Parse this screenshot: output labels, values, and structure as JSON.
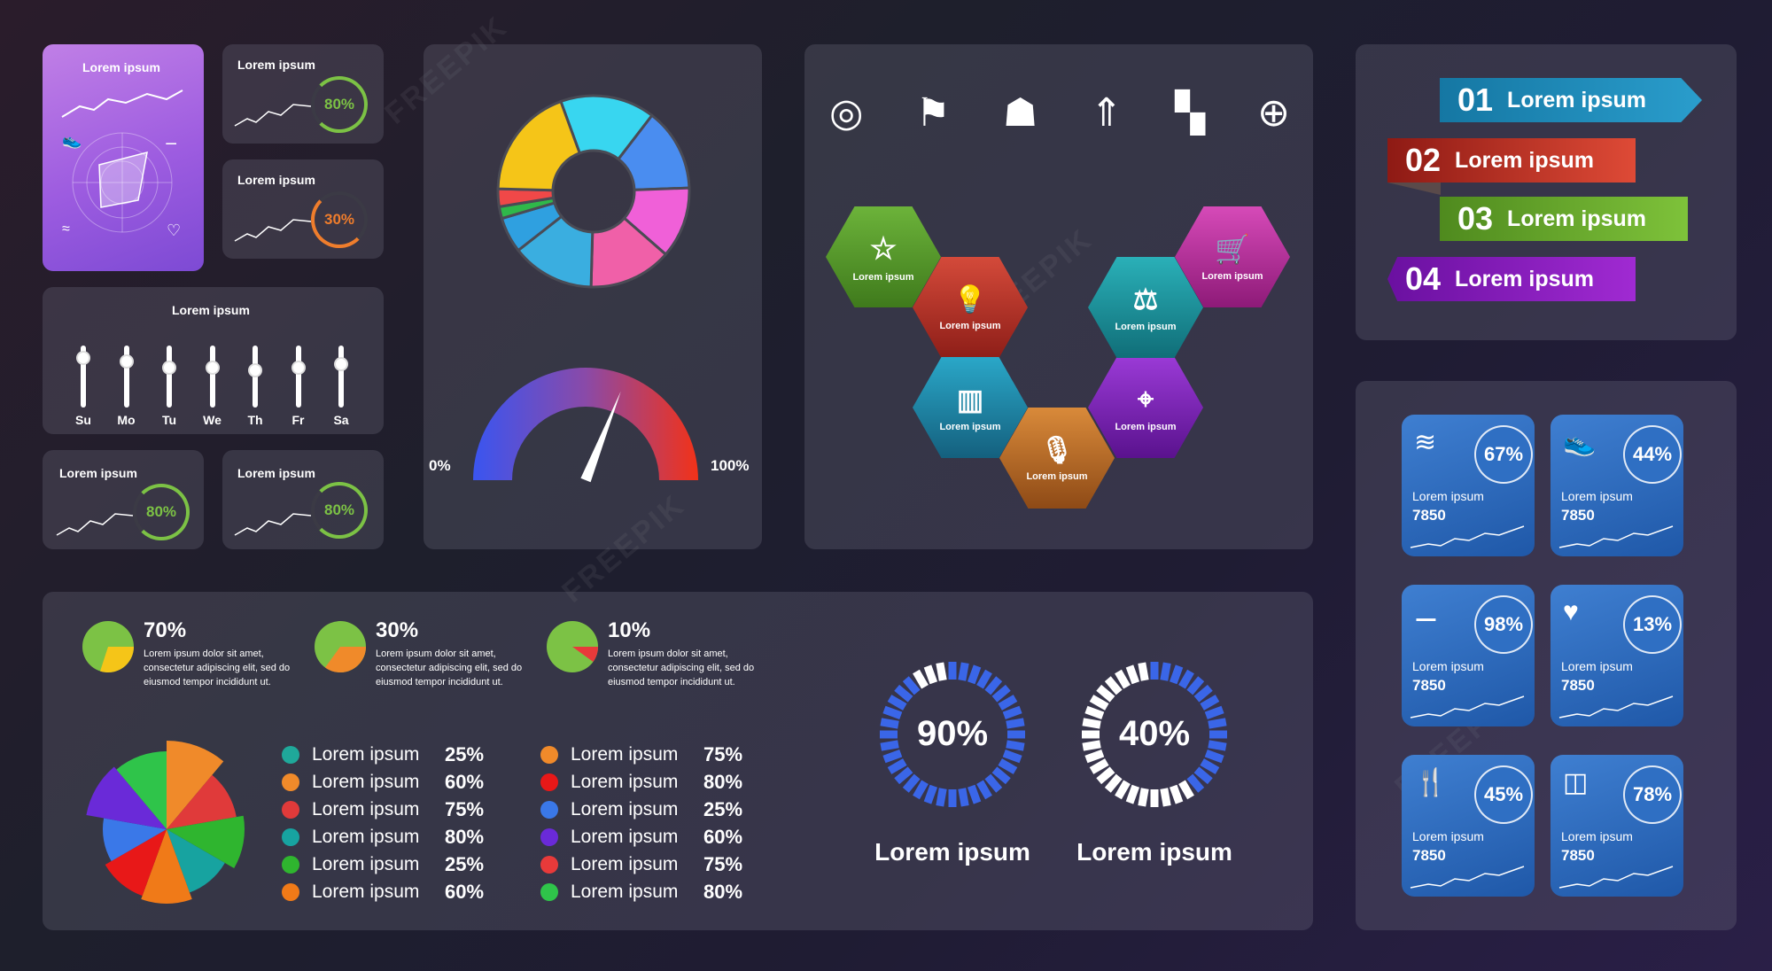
{
  "colors": {
    "green_ring": "#7cc245",
    "orange_ring": "#ef7d2c",
    "blue_card": "#2f6fc3"
  },
  "fitness_card": {
    "title": "Lorem ipsum"
  },
  "mini_cards": [
    {
      "title": "Lorem ipsum",
      "value": "80%"
    },
    {
      "title": "Lorem ipsum",
      "value": "30%"
    },
    {
      "title": "Lorem ipsum",
      "value": "80%"
    },
    {
      "title": "Lorem ipsum",
      "value": "80%"
    }
  ],
  "sliders": {
    "title": "Lorem ipsum",
    "days": [
      "Su",
      "Mo",
      "Tu",
      "We",
      "Th",
      "Fr",
      "Sa"
    ]
  },
  "gauge": {
    "min_label": "0%",
    "max_label": "100%",
    "value": 0.62
  },
  "top_icons": [
    "target-icon",
    "stairs-flag-icon",
    "waiter-icon",
    "rocket-icon",
    "binoculars-icon",
    "globe-icon"
  ],
  "hexagons": [
    {
      "label": "Lorem ipsum",
      "icon": "star-icon",
      "color": "#5a9a2e"
    },
    {
      "label": "Lorem ipsum",
      "icon": "lightbulb-icon",
      "color": "#c4352a"
    },
    {
      "label": "Lorem ipsum",
      "icon": "bar-chart-icon",
      "color": "#1f8fb0"
    },
    {
      "label": "Lorem ipsum",
      "icon": "microphone-icon",
      "color": "#c77428"
    },
    {
      "label": "Lorem ipsum",
      "icon": "location-pin-icon",
      "color": "#7b22b8"
    },
    {
      "label": "Lorem ipsum",
      "icon": "balance-scale-icon",
      "color": "#1f9ea8"
    },
    {
      "label": "Lorem ipsum",
      "icon": "shopping-cart-icon",
      "color": "#c53aa8"
    }
  ],
  "ribbons": [
    {
      "num": "01",
      "text": "Lorem ipsum",
      "color": "#1b86b3"
    },
    {
      "num": "02",
      "text": "Lorem ipsum",
      "color": "#c8392c"
    },
    {
      "num": "03",
      "text": "Lorem ipsum",
      "color": "#6eaa2a"
    },
    {
      "num": "04",
      "text": "Lorem ipsum",
      "color": "#8b1fae"
    }
  ],
  "fitness_cards": [
    {
      "icon": "swimmer-icon",
      "pct": "67%",
      "label": "Lorem ipsum",
      "value": "7850"
    },
    {
      "icon": "sneaker-icon",
      "pct": "44%",
      "label": "Lorem ipsum",
      "value": "7850"
    },
    {
      "icon": "dumbbell-icon",
      "pct": "98%",
      "label": "Lorem ipsum",
      "value": "7850"
    },
    {
      "icon": "heart-icon",
      "pct": "13%",
      "label": "Lorem ipsum",
      "value": "7850"
    },
    {
      "icon": "fork-knife-icon",
      "pct": "45%",
      "label": "Lorem ipsum",
      "value": "7850"
    },
    {
      "icon": "glass-icon",
      "pct": "78%",
      "label": "Lorem ipsum",
      "value": "7850"
    }
  ],
  "pie_stats": [
    {
      "value": "70%",
      "text": "Lorem ipsum dolor sit amet, consectetur adipiscing elit, sed do eiusmod tempor incididunt ut."
    },
    {
      "value": "30%",
      "text": "Lorem ipsum dolor sit amet, consectetur adipiscing elit, sed do eiusmod tempor incididunt ut."
    },
    {
      "value": "10%",
      "text": "Lorem ipsum dolor sit amet, consectetur adipiscing elit, sed do eiusmod tempor incididunt ut."
    }
  ],
  "legend_left": [
    {
      "label": "Lorem ipsum",
      "value": "25%",
      "color": "#1fa89a"
    },
    {
      "label": "Lorem ipsum",
      "value": "60%",
      "color": "#f08a2a"
    },
    {
      "label": "Lorem ipsum",
      "value": "75%",
      "color": "#e03a3a"
    },
    {
      "label": "Lorem ipsum",
      "value": "80%",
      "color": "#17a3a0"
    },
    {
      "label": "Lorem ipsum",
      "value": "25%",
      "color": "#2fb52f"
    },
    {
      "label": "Lorem ipsum",
      "value": "60%",
      "color": "#f07a18"
    }
  ],
  "legend_right": [
    {
      "label": "Lorem ipsum",
      "value": "75%",
      "color": "#f08a2a"
    },
    {
      "label": "Lorem ipsum",
      "value": "80%",
      "color": "#e81818"
    },
    {
      "label": "Lorem ipsum",
      "value": "25%",
      "color": "#3a78e8"
    },
    {
      "label": "Lorem ipsum",
      "value": "60%",
      "color": "#6a2ad8"
    },
    {
      "label": "Lorem ipsum",
      "value": "75%",
      "color": "#e83a3a"
    },
    {
      "label": "Lorem ipsum",
      "value": "80%",
      "color": "#2fc44a"
    }
  ],
  "progress_rings": [
    {
      "value": "90%",
      "label": "Lorem ipsum",
      "fraction": 0.9
    },
    {
      "value": "40%",
      "label": "Lorem ipsum",
      "fraction": 0.4
    }
  ],
  "chart_data": [
    {
      "type": "pie",
      "title": "",
      "values": [
        16,
        14,
        12,
        14,
        14,
        6,
        2,
        3,
        19
      ],
      "colors": [
        "#38d6f0",
        "#4a8df0",
        "#f060d8",
        "#f060a8",
        "#3aaee0",
        "#2fa0e0",
        "#2fb84a",
        "#f04848",
        "#f5c518"
      ]
    },
    {
      "type": "pie",
      "title": "",
      "values": [
        15,
        10,
        12,
        9,
        11,
        10,
        8,
        13,
        12
      ],
      "colors": [
        "#f08a2a",
        "#e03a3a",
        "#2fb52f",
        "#17a3a0",
        "#f07a18",
        "#e81818",
        "#3a78e8",
        "#6a2ad8",
        "#2fc44a"
      ]
    }
  ]
}
